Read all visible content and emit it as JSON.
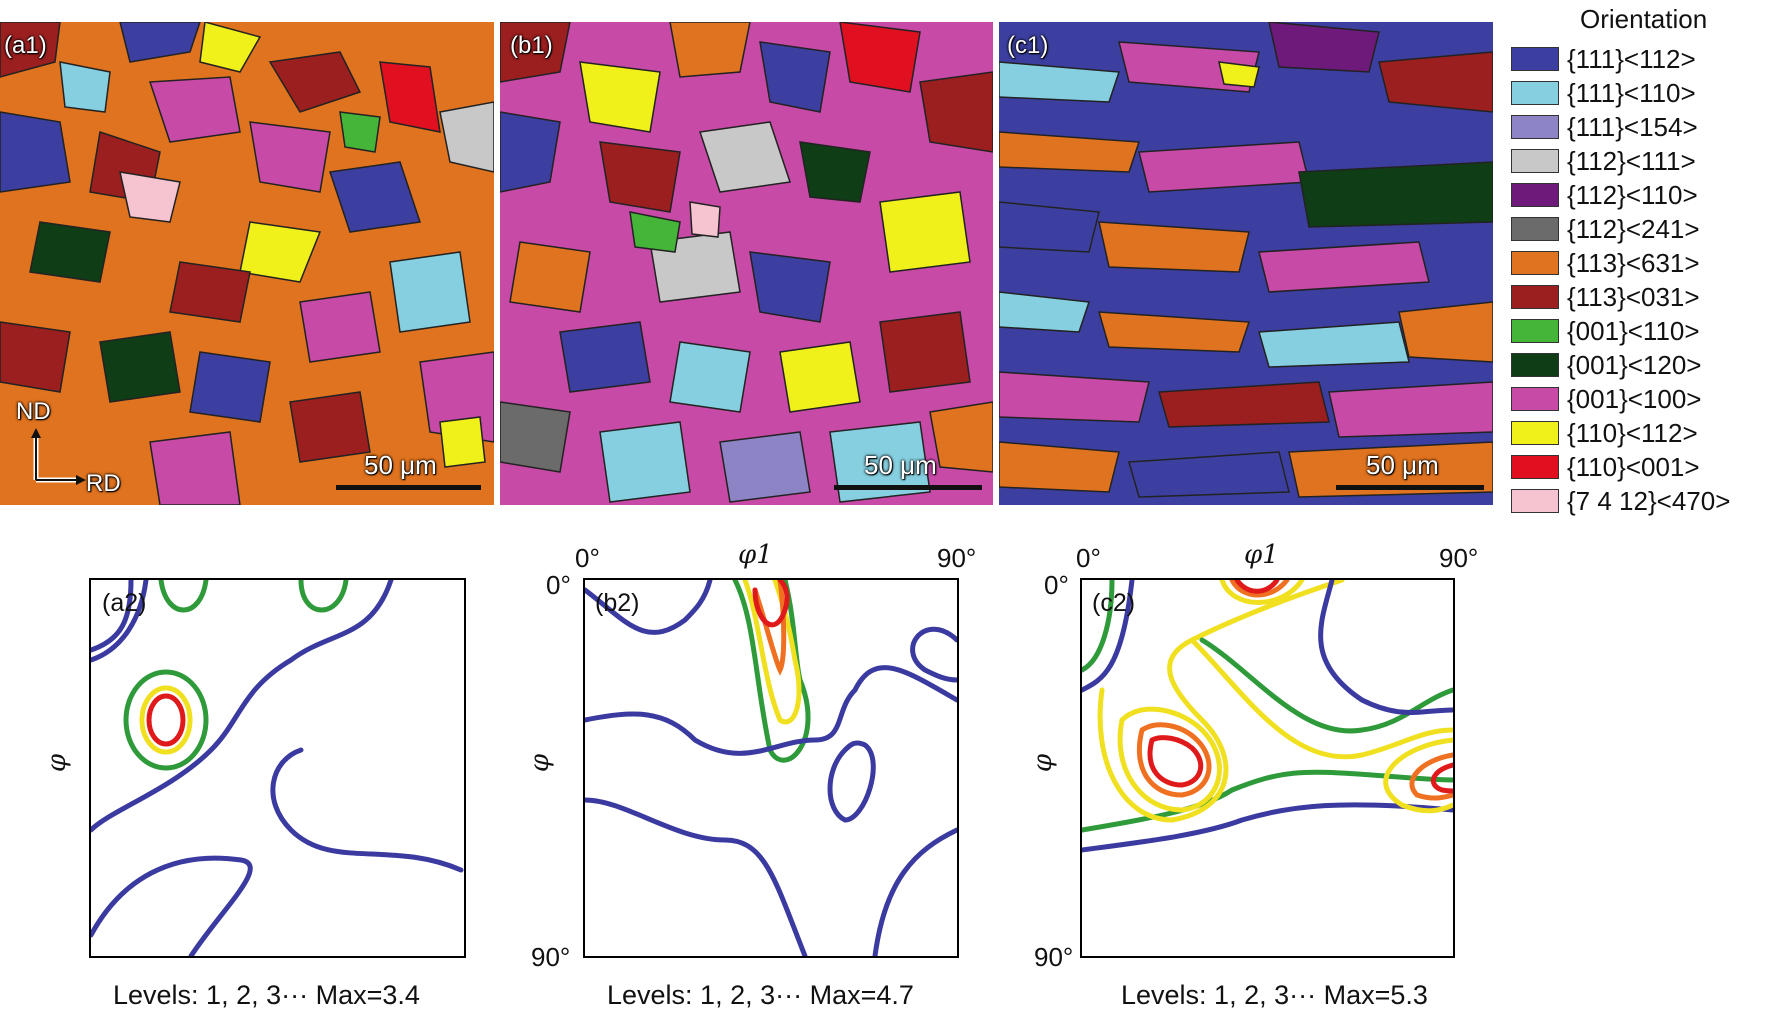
{
  "maps": [
    {
      "label": "(a1)",
      "scale_text": "50 μm",
      "axis_nd": "ND",
      "axis_rd": "RD"
    },
    {
      "label": "(b1)",
      "scale_text": "50 μm"
    },
    {
      "label": "(c1)",
      "scale_text": "50 μm"
    }
  ],
  "legend": {
    "title": "Orientation",
    "items": [
      {
        "label": "{111}<112>",
        "color": "#3c3fa0"
      },
      {
        "label": "{111}<110>",
        "color": "#86cfe0"
      },
      {
        "label": "{111}<154>",
        "color": "#8d84c6"
      },
      {
        "label": "{112}<111>",
        "color": "#c8c8c8"
      },
      {
        "label": "{112}<110>",
        "color": "#6e1a7a"
      },
      {
        "label": "{112}<241>",
        "color": "#6b6b6b"
      },
      {
        "label": "{113}<631>",
        "color": "#e0731f"
      },
      {
        "label": "{113}<031>",
        "color": "#9b1f1f"
      },
      {
        "label": "{001}<110>",
        "color": "#45b53a"
      },
      {
        "label": "{001}<120>",
        "color": "#0f3d15"
      },
      {
        "label": "{001}<100>",
        "color": "#c64aa6"
      },
      {
        "label": "{110}<112>",
        "color": "#f0f01a"
      },
      {
        "label": "{110}<001>",
        "color": "#e01020"
      },
      {
        "label": "{7 4 12}<470>",
        "color": "#f6c4d0"
      }
    ]
  },
  "odf": [
    {
      "label": "(a2)",
      "phi_axis": "φ",
      "levels_text": "Levels: 1, 2, 3··· Max=3.4"
    },
    {
      "label": "(b2)",
      "phi1_axis": "φ1",
      "phi_axis": "φ",
      "x_start": "0°",
      "x_end": "90°",
      "y_start": "0°",
      "y_end": "90°",
      "levels_text": "Levels: 1, 2, 3··· Max=4.7"
    },
    {
      "label": "(c2)",
      "phi1_axis": "φ1",
      "phi_axis": "φ",
      "x_start": "0°",
      "x_end": "90°",
      "y_start": "0°",
      "y_end": "90°",
      "levels_text": "Levels: 1, 2, 3··· Max=5.3"
    }
  ],
  "contour_colors": {
    "level1": "#3a3aa0",
    "level2": "#2e9a3a",
    "level3": "#f0e020",
    "level4": "#ef7020",
    "level5": "#e01a1a"
  }
}
